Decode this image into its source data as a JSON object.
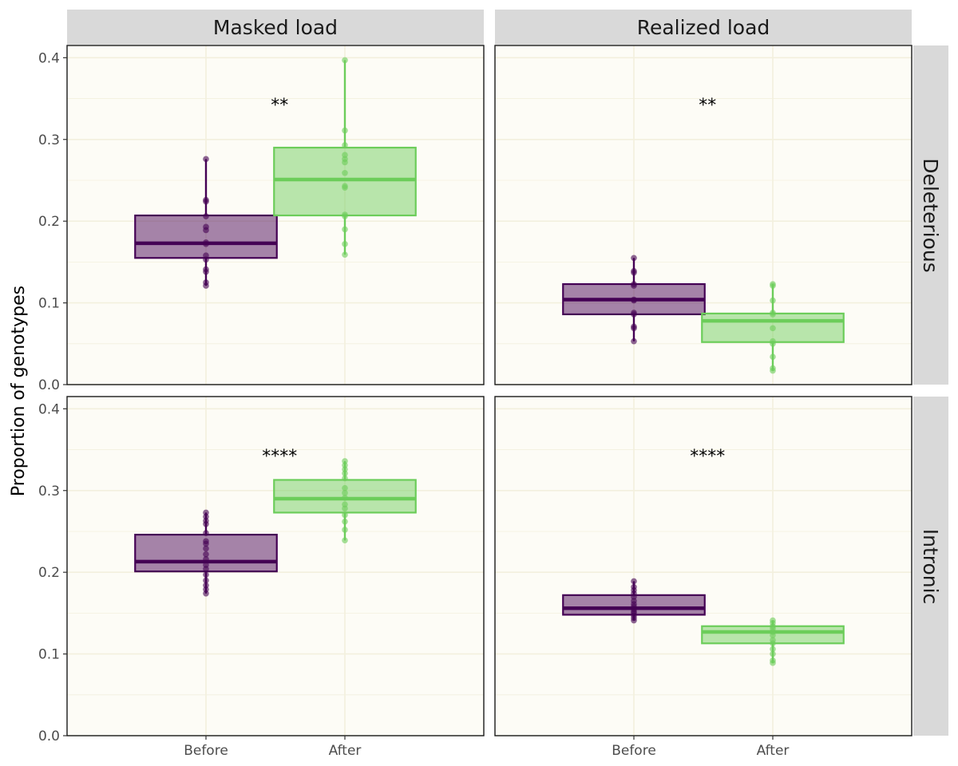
{
  "chart_data": {
    "type": "box",
    "ylabel": "Proportion of genotypes",
    "xlabel": "",
    "ylim": [
      0,
      0.415
    ],
    "yticks": [
      "0.0",
      "0.1",
      "0.2",
      "0.3",
      "0.4"
    ],
    "categories": [
      "Before",
      "After"
    ],
    "column_facets": [
      "Masked load",
      "Realized load"
    ],
    "row_facets": [
      "Deleterious",
      "Intronic"
    ],
    "colors": {
      "Before": "#440154",
      "After": "#6ccd5a",
      "panel_bg": "#fdfcf6",
      "grid": "#f3f0de",
      "strip_bg": "#d9d9d9"
    },
    "grid": true,
    "legend": "none",
    "panels": [
      {
        "column": "Masked load",
        "row": "Deleterious",
        "annotation": "**",
        "boxes": [
          {
            "group": "Before",
            "q1": 0.155,
            "median": 0.173,
            "q3": 0.207,
            "whisker_low": 0.121,
            "whisker_high": 0.276,
            "points": [
              0.121,
              0.125,
              0.138,
              0.141,
              0.153,
              0.158,
              0.172,
              0.174,
              0.189,
              0.193,
              0.206,
              0.224,
              0.226,
              0.276
            ]
          },
          {
            "group": "After",
            "q1": 0.207,
            "median": 0.251,
            "q3": 0.29,
            "whisker_low": 0.159,
            "whisker_high": 0.397,
            "points": [
              0.159,
              0.172,
              0.19,
              0.206,
              0.208,
              0.241,
              0.243,
              0.259,
              0.272,
              0.276,
              0.281,
              0.293,
              0.311,
              0.397
            ]
          }
        ]
      },
      {
        "column": "Realized load",
        "row": "Deleterious",
        "annotation": "**",
        "boxes": [
          {
            "group": "Before",
            "q1": 0.086,
            "median": 0.104,
            "q3": 0.123,
            "whisker_low": 0.053,
            "whisker_high": 0.155,
            "points": [
              0.053,
              0.069,
              0.071,
              0.086,
              0.088,
              0.103,
              0.104,
              0.121,
              0.123,
              0.137,
              0.139,
              0.155
            ]
          },
          {
            "group": "After",
            "q1": 0.052,
            "median": 0.078,
            "q3": 0.087,
            "whisker_low": 0.017,
            "whisker_high": 0.123,
            "points": [
              0.017,
              0.02,
              0.034,
              0.05,
              0.053,
              0.069,
              0.086,
              0.088,
              0.103,
              0.121,
              0.123
            ]
          }
        ]
      },
      {
        "column": "Masked load",
        "row": "Intronic",
        "annotation": "****",
        "boxes": [
          {
            "group": "Before",
            "q1": 0.201,
            "median": 0.213,
            "q3": 0.246,
            "whisker_low": 0.174,
            "whisker_high": 0.273,
            "points": [
              0.174,
              0.179,
              0.184,
              0.19,
              0.197,
              0.204,
              0.209,
              0.216,
              0.222,
              0.229,
              0.235,
              0.238,
              0.248,
              0.259,
              0.263,
              0.268,
              0.273
            ]
          },
          {
            "group": "After",
            "q1": 0.273,
            "median": 0.29,
            "q3": 0.313,
            "whisker_low": 0.239,
            "whisker_high": 0.336,
            "points": [
              0.239,
              0.252,
              0.262,
              0.27,
              0.278,
              0.283,
              0.291,
              0.297,
              0.303,
              0.315,
              0.321,
              0.326,
              0.331,
              0.336
            ]
          }
        ]
      },
      {
        "column": "Realized load",
        "row": "Intronic",
        "annotation": "****",
        "boxes": [
          {
            "group": "Before",
            "q1": 0.148,
            "median": 0.156,
            "q3": 0.172,
            "whisker_low": 0.141,
            "whisker_high": 0.189,
            "points": [
              0.141,
              0.144,
              0.147,
              0.15,
              0.152,
              0.155,
              0.158,
              0.161,
              0.165,
              0.17,
              0.174,
              0.178,
              0.182,
              0.189
            ]
          },
          {
            "group": "After",
            "q1": 0.113,
            "median": 0.127,
            "q3": 0.134,
            "whisker_low": 0.089,
            "whisker_high": 0.141,
            "points": [
              0.089,
              0.092,
              0.1,
              0.106,
              0.113,
              0.117,
              0.123,
              0.127,
              0.131,
              0.134,
              0.138,
              0.141
            ]
          }
        ]
      }
    ]
  }
}
